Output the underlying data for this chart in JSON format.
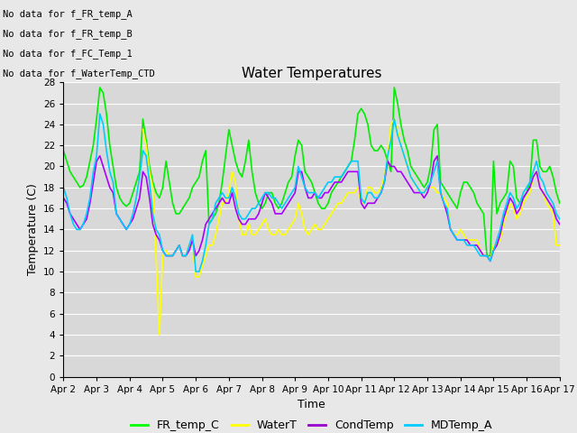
{
  "title": "Water Temperatures",
  "xlabel": "Time",
  "ylabel": "Temperature (C)",
  "background_color": "#e8e8e8",
  "plot_bg_color": "#d8d8d8",
  "grid_color": "#ffffff",
  "ylim": [
    0,
    28
  ],
  "yticks": [
    0,
    2,
    4,
    6,
    8,
    10,
    12,
    14,
    16,
    18,
    20,
    22,
    24,
    26,
    28
  ],
  "no_data_texts": [
    "No data for f_FR_temp_A",
    "No data for f_FR_temp_B",
    "No data for f_FC_Temp_1",
    "No data for f_WaterTemp_CTD"
  ],
  "legend_entries": [
    "FR_temp_C",
    "WaterT",
    "CondTemp",
    "MDTemp_A"
  ],
  "legend_colors": [
    "#00ff00",
    "#ffff00",
    "#9900cc",
    "#00ccff"
  ],
  "series": {
    "FR_temp_C": {
      "color": "#00ee00",
      "linewidth": 1.2,
      "x": [
        2.0,
        2.1,
        2.2,
        2.3,
        2.4,
        2.5,
        2.6,
        2.7,
        2.8,
        2.9,
        3.0,
        3.1,
        3.2,
        3.3,
        3.4,
        3.5,
        3.6,
        3.7,
        3.8,
        3.9,
        4.0,
        4.1,
        4.2,
        4.3,
        4.4,
        4.5,
        4.6,
        4.7,
        4.8,
        4.9,
        5.0,
        5.1,
        5.2,
        5.3,
        5.4,
        5.5,
        5.6,
        5.7,
        5.8,
        5.9,
        6.0,
        6.1,
        6.2,
        6.3,
        6.4,
        6.5,
        6.6,
        6.7,
        6.8,
        6.9,
        7.0,
        7.1,
        7.2,
        7.3,
        7.4,
        7.5,
        7.6,
        7.7,
        7.8,
        7.9,
        8.0,
        8.1,
        8.2,
        8.3,
        8.4,
        8.5,
        8.6,
        8.7,
        8.8,
        8.9,
        9.0,
        9.1,
        9.2,
        9.3,
        9.4,
        9.5,
        9.6,
        9.7,
        9.8,
        9.9,
        10.0,
        10.1,
        10.2,
        10.3,
        10.4,
        10.5,
        10.6,
        10.7,
        10.8,
        10.9,
        11.0,
        11.1,
        11.2,
        11.3,
        11.4,
        11.5,
        11.6,
        11.7,
        11.8,
        11.9,
        12.0,
        12.1,
        12.2,
        12.3,
        12.4,
        12.5,
        12.6,
        12.7,
        12.8,
        12.9,
        13.0,
        13.1,
        13.2,
        13.3,
        13.4,
        13.5,
        13.6,
        13.7,
        13.8,
        13.9,
        14.0,
        14.1,
        14.2,
        14.3,
        14.4,
        14.5,
        14.6,
        14.7,
        14.8,
        14.9,
        15.0,
        15.1,
        15.2,
        15.3,
        15.4,
        15.5,
        15.6,
        15.7,
        15.8,
        15.9,
        16.0,
        16.1,
        16.2,
        16.3,
        16.4,
        16.5,
        16.6,
        16.7,
        16.8,
        16.9,
        17.0
      ],
      "y": [
        21.5,
        20.5,
        19.5,
        19.0,
        18.5,
        18.0,
        18.2,
        19.0,
        20.5,
        22.0,
        24.5,
        27.5,
        27.0,
        25.0,
        22.0,
        20.0,
        18.0,
        17.0,
        16.5,
        16.2,
        16.5,
        17.5,
        18.5,
        19.5,
        24.5,
        22.5,
        20.0,
        18.5,
        17.5,
        17.0,
        18.0,
        20.5,
        18.5,
        16.5,
        15.5,
        15.5,
        16.0,
        16.5,
        17.0,
        18.0,
        18.5,
        19.0,
        20.5,
        21.5,
        14.5,
        15.0,
        15.5,
        16.5,
        18.5,
        21.0,
        23.5,
        22.0,
        20.5,
        19.5,
        19.0,
        20.5,
        22.5,
        19.5,
        17.5,
        16.5,
        16.0,
        16.5,
        17.5,
        17.5,
        16.5,
        16.0,
        16.5,
        17.5,
        18.5,
        19.0,
        21.0,
        22.5,
        22.0,
        19.5,
        19.0,
        18.5,
        17.5,
        16.5,
        16.0,
        16.0,
        16.5,
        17.5,
        18.0,
        18.5,
        19.0,
        19.5,
        20.0,
        20.5,
        22.5,
        25.0,
        25.5,
        25.0,
        24.0,
        22.0,
        21.5,
        21.5,
        22.0,
        21.5,
        20.5,
        19.5,
        27.5,
        26.0,
        24.0,
        22.5,
        21.5,
        20.0,
        19.5,
        19.0,
        18.5,
        18.0,
        18.5,
        20.0,
        23.5,
        24.0,
        18.5,
        18.0,
        17.5,
        17.0,
        16.5,
        16.0,
        17.5,
        18.5,
        18.5,
        18.0,
        17.5,
        16.5,
        16.0,
        15.5,
        11.5,
        11.5,
        20.5,
        15.5,
        16.5,
        17.0,
        17.5,
        20.5,
        20.0,
        17.0,
        16.5,
        17.0,
        17.5,
        18.5,
        22.5,
        22.5,
        20.0,
        19.5,
        19.5,
        20.0,
        19.0,
        17.5,
        16.5
      ]
    },
    "WaterT": {
      "color": "#ffff00",
      "linewidth": 1.2,
      "x": [
        2.0,
        2.1,
        2.2,
        2.3,
        2.4,
        2.5,
        2.6,
        2.7,
        2.8,
        2.9,
        3.0,
        3.1,
        3.2,
        3.3,
        3.4,
        3.5,
        3.6,
        3.7,
        3.8,
        3.9,
        4.0,
        4.1,
        4.2,
        4.3,
        4.4,
        4.5,
        4.6,
        4.7,
        4.8,
        4.9,
        5.0,
        5.1,
        5.2,
        5.3,
        5.4,
        5.5,
        5.6,
        5.7,
        5.8,
        5.9,
        6.0,
        6.1,
        6.2,
        6.3,
        6.4,
        6.5,
        6.6,
        6.7,
        6.8,
        6.9,
        7.0,
        7.1,
        7.2,
        7.3,
        7.4,
        7.5,
        7.6,
        7.7,
        7.8,
        7.9,
        8.0,
        8.1,
        8.2,
        8.3,
        8.4,
        8.5,
        8.6,
        8.7,
        8.8,
        8.9,
        9.0,
        9.1,
        9.2,
        9.3,
        9.4,
        9.5,
        9.6,
        9.7,
        9.8,
        9.9,
        10.0,
        10.1,
        10.2,
        10.3,
        10.4,
        10.5,
        10.6,
        10.7,
        10.8,
        10.9,
        11.0,
        11.1,
        11.2,
        11.3,
        11.4,
        11.5,
        11.6,
        11.7,
        11.8,
        11.9,
        12.0,
        12.1,
        12.2,
        12.3,
        12.4,
        12.5,
        12.6,
        12.7,
        12.8,
        12.9,
        13.0,
        13.1,
        13.2,
        13.3,
        13.4,
        13.5,
        13.6,
        13.7,
        13.8,
        13.9,
        14.0,
        14.1,
        14.2,
        14.3,
        14.4,
        14.5,
        14.6,
        14.7,
        14.8,
        14.9,
        15.0,
        15.1,
        15.2,
        15.3,
        15.4,
        15.5,
        15.6,
        15.7,
        15.8,
        15.9,
        16.0,
        16.1,
        16.2,
        16.3,
        16.4,
        16.5,
        16.6,
        16.7,
        16.8,
        16.9,
        17.0
      ],
      "y": [
        null,
        null,
        null,
        null,
        null,
        null,
        null,
        null,
        null,
        null,
        null,
        null,
        null,
        null,
        null,
        null,
        null,
        null,
        null,
        null,
        null,
        null,
        null,
        null,
        23.5,
        22.0,
        19.5,
        18.0,
        11.5,
        4.0,
        11.5,
        12.0,
        11.5,
        11.5,
        12.0,
        12.5,
        11.5,
        11.5,
        12.5,
        12.5,
        9.5,
        9.5,
        10.5,
        11.5,
        12.5,
        12.5,
        13.5,
        15.0,
        16.5,
        16.5,
        17.5,
        19.5,
        18.5,
        15.0,
        13.5,
        13.5,
        14.5,
        13.5,
        13.5,
        14.0,
        14.5,
        15.0,
        14.0,
        13.5,
        13.5,
        14.0,
        13.5,
        13.5,
        14.0,
        14.5,
        15.0,
        16.5,
        15.5,
        14.0,
        13.5,
        14.0,
        14.5,
        14.0,
        14.0,
        14.5,
        15.0,
        15.5,
        16.0,
        16.5,
        16.5,
        17.0,
        17.5,
        17.5,
        17.5,
        18.0,
        16.5,
        16.5,
        18.0,
        18.0,
        17.5,
        17.5,
        18.0,
        19.0,
        21.0,
        24.0,
        24.5,
        23.5,
        22.0,
        21.0,
        20.0,
        19.0,
        18.5,
        18.0,
        17.5,
        17.5,
        18.0,
        18.0,
        18.0,
        17.5,
        17.5,
        17.0,
        16.5,
        14.0,
        13.5,
        13.5,
        14.0,
        13.5,
        13.0,
        13.0,
        13.0,
        13.0,
        12.0,
        11.5,
        11.5,
        11.0,
        12.5,
        12.5,
        13.0,
        14.5,
        15.5,
        16.5,
        16.0,
        15.0,
        15.5,
        16.5,
        17.0,
        17.5,
        19.0,
        19.5,
        18.0,
        17.5,
        16.5,
        16.0,
        15.5,
        12.5,
        12.5
      ]
    },
    "CondTemp": {
      "color": "#aa00ff",
      "linewidth": 1.2,
      "x": [
        2.0,
        2.1,
        2.2,
        2.3,
        2.4,
        2.5,
        2.6,
        2.7,
        2.8,
        2.9,
        3.0,
        3.1,
        3.2,
        3.3,
        3.4,
        3.5,
        3.6,
        3.7,
        3.8,
        3.9,
        4.0,
        4.1,
        4.2,
        4.3,
        4.4,
        4.5,
        4.6,
        4.7,
        4.8,
        4.9,
        5.0,
        5.1,
        5.2,
        5.3,
        5.4,
        5.5,
        5.6,
        5.7,
        5.8,
        5.9,
        6.0,
        6.1,
        6.2,
        6.3,
        6.4,
        6.5,
        6.6,
        6.7,
        6.8,
        6.9,
        7.0,
        7.1,
        7.2,
        7.3,
        7.4,
        7.5,
        7.6,
        7.7,
        7.8,
        7.9,
        8.0,
        8.1,
        8.2,
        8.3,
        8.4,
        8.5,
        8.6,
        8.7,
        8.8,
        8.9,
        9.0,
        9.1,
        9.2,
        9.3,
        9.4,
        9.5,
        9.6,
        9.7,
        9.8,
        9.9,
        10.0,
        10.1,
        10.2,
        10.3,
        10.4,
        10.5,
        10.6,
        10.7,
        10.8,
        10.9,
        11.0,
        11.1,
        11.2,
        11.3,
        11.4,
        11.5,
        11.6,
        11.7,
        11.8,
        11.9,
        12.0,
        12.1,
        12.2,
        12.3,
        12.4,
        12.5,
        12.6,
        12.7,
        12.8,
        12.9,
        13.0,
        13.1,
        13.2,
        13.3,
        13.4,
        13.5,
        13.6,
        13.7,
        13.8,
        13.9,
        14.0,
        14.1,
        14.2,
        14.3,
        14.4,
        14.5,
        14.6,
        14.7,
        14.8,
        14.9,
        15.0,
        15.1,
        15.2,
        15.3,
        15.4,
        15.5,
        15.6,
        15.7,
        15.8,
        15.9,
        16.0,
        16.1,
        16.2,
        16.3,
        16.4,
        16.5,
        16.6,
        16.7,
        16.8,
        16.9,
        17.0
      ],
      "y": [
        17.0,
        16.5,
        15.5,
        15.0,
        14.5,
        14.0,
        14.5,
        15.0,
        16.5,
        18.5,
        20.5,
        21.0,
        20.0,
        19.0,
        18.0,
        17.5,
        15.5,
        15.0,
        14.5,
        14.0,
        14.5,
        15.0,
        16.0,
        17.0,
        19.5,
        19.0,
        17.0,
        14.5,
        13.5,
        13.0,
        12.0,
        11.5,
        11.5,
        11.5,
        12.0,
        12.5,
        11.5,
        11.5,
        12.0,
        13.0,
        11.5,
        12.0,
        13.0,
        14.5,
        15.0,
        15.5,
        16.0,
        16.5,
        17.0,
        16.5,
        16.5,
        17.5,
        16.0,
        15.0,
        14.5,
        14.5,
        15.0,
        15.0,
        15.0,
        15.5,
        16.5,
        17.5,
        17.0,
        16.5,
        15.5,
        15.5,
        15.5,
        16.0,
        16.5,
        17.0,
        17.5,
        19.5,
        19.5,
        18.0,
        17.0,
        17.0,
        17.5,
        17.0,
        17.0,
        17.5,
        17.5,
        18.0,
        18.5,
        18.5,
        18.5,
        19.0,
        19.5,
        19.5,
        19.5,
        19.5,
        16.5,
        16.0,
        16.5,
        16.5,
        16.5,
        17.0,
        17.5,
        18.5,
        20.5,
        20.0,
        20.0,
        19.5,
        19.5,
        19.0,
        18.5,
        18.0,
        17.5,
        17.5,
        17.5,
        17.0,
        17.5,
        18.5,
        20.5,
        21.0,
        17.5,
        16.5,
        15.5,
        14.0,
        13.5,
        13.0,
        13.0,
        13.0,
        13.0,
        12.5,
        12.5,
        12.5,
        12.0,
        11.5,
        11.5,
        11.0,
        12.0,
        12.5,
        13.5,
        15.0,
        16.0,
        17.0,
        16.5,
        15.5,
        16.0,
        17.0,
        17.5,
        18.0,
        19.0,
        19.5,
        18.0,
        17.5,
        17.0,
        16.5,
        16.0,
        15.0,
        14.5
      ]
    },
    "MDTemp_A": {
      "color": "#00ccff",
      "linewidth": 1.2,
      "x": [
        2.0,
        2.1,
        2.2,
        2.3,
        2.4,
        2.5,
        2.6,
        2.7,
        2.8,
        2.9,
        3.0,
        3.1,
        3.2,
        3.3,
        3.4,
        3.5,
        3.6,
        3.7,
        3.8,
        3.9,
        4.0,
        4.1,
        4.2,
        4.3,
        4.4,
        4.5,
        4.6,
        4.7,
        4.8,
        4.9,
        5.0,
        5.1,
        5.2,
        5.3,
        5.4,
        5.5,
        5.6,
        5.7,
        5.8,
        5.9,
        6.0,
        6.1,
        6.2,
        6.3,
        6.4,
        6.5,
        6.6,
        6.7,
        6.8,
        6.9,
        7.0,
        7.1,
        7.2,
        7.3,
        7.4,
        7.5,
        7.6,
        7.7,
        7.8,
        7.9,
        8.0,
        8.1,
        8.2,
        8.3,
        8.4,
        8.5,
        8.6,
        8.7,
        8.8,
        8.9,
        9.0,
        9.1,
        9.2,
        9.3,
        9.4,
        9.5,
        9.6,
        9.7,
        9.8,
        9.9,
        10.0,
        10.1,
        10.2,
        10.3,
        10.4,
        10.5,
        10.6,
        10.7,
        10.8,
        10.9,
        11.0,
        11.1,
        11.2,
        11.3,
        11.4,
        11.5,
        11.6,
        11.7,
        11.8,
        11.9,
        12.0,
        12.1,
        12.2,
        12.3,
        12.4,
        12.5,
        12.6,
        12.7,
        12.8,
        12.9,
        13.0,
        13.1,
        13.2,
        13.3,
        13.4,
        13.5,
        13.6,
        13.7,
        13.8,
        13.9,
        14.0,
        14.1,
        14.2,
        14.3,
        14.4,
        14.5,
        14.6,
        14.7,
        14.8,
        14.9,
        15.0,
        15.1,
        15.2,
        15.3,
        15.4,
        15.5,
        15.6,
        15.7,
        15.8,
        15.9,
        16.0,
        16.1,
        16.2,
        16.3,
        16.4,
        16.5,
        16.6,
        16.7,
        16.8,
        16.9,
        17.0
      ],
      "y": [
        18.0,
        17.0,
        15.5,
        14.5,
        14.0,
        14.0,
        14.5,
        15.5,
        17.0,
        19.5,
        21.0,
        25.0,
        24.0,
        21.5,
        19.5,
        18.5,
        15.5,
        15.0,
        14.5,
        14.0,
        14.5,
        15.5,
        17.0,
        19.0,
        21.5,
        21.0,
        18.5,
        15.5,
        14.0,
        13.5,
        12.0,
        11.5,
        11.5,
        11.5,
        12.0,
        12.5,
        11.5,
        11.5,
        12.5,
        13.5,
        10.0,
        10.0,
        11.0,
        12.5,
        14.5,
        15.0,
        16.5,
        17.0,
        17.5,
        17.0,
        17.0,
        18.0,
        17.0,
        15.5,
        15.0,
        15.0,
        15.5,
        16.0,
        16.0,
        16.5,
        17.0,
        17.5,
        17.5,
        17.0,
        17.0,
        16.5,
        16.0,
        16.5,
        17.0,
        17.5,
        18.0,
        20.0,
        19.0,
        18.0,
        17.5,
        17.5,
        17.5,
        17.0,
        17.5,
        18.0,
        18.5,
        18.5,
        19.0,
        19.0,
        19.0,
        19.5,
        20.0,
        20.5,
        20.5,
        20.5,
        17.0,
        16.5,
        17.5,
        17.5,
        17.0,
        17.0,
        17.5,
        18.5,
        21.0,
        22.5,
        24.5,
        23.0,
        22.0,
        21.0,
        20.0,
        19.0,
        18.5,
        18.0,
        17.5,
        17.5,
        18.0,
        18.5,
        19.5,
        20.5,
        17.5,
        16.5,
        16.0,
        14.0,
        13.5,
        13.0,
        13.0,
        13.0,
        12.5,
        12.5,
        12.5,
        12.0,
        11.5,
        11.5,
        11.5,
        11.0,
        12.0,
        13.0,
        14.0,
        15.5,
        16.5,
        17.5,
        17.0,
        16.0,
        16.5,
        17.5,
        18.0,
        18.5,
        19.5,
        20.5,
        19.0,
        18.5,
        17.5,
        17.0,
        16.5,
        15.5,
        15.0
      ]
    }
  },
  "xtick_positions": [
    2,
    3,
    4,
    5,
    6,
    7,
    8,
    9,
    10,
    11,
    12,
    13,
    14,
    15,
    16,
    17
  ],
  "xtick_labels": [
    "Apr 2",
    "Apr 3",
    "Apr 4",
    "Apr 5",
    "Apr 6",
    "Apr 7",
    "Apr 8",
    "Apr 9",
    "Apr 10",
    "Apr 11",
    "Apr 12",
    "Apr 13",
    "Apr 14",
    "Apr 15",
    "Apr 16",
    "Apr 17"
  ]
}
